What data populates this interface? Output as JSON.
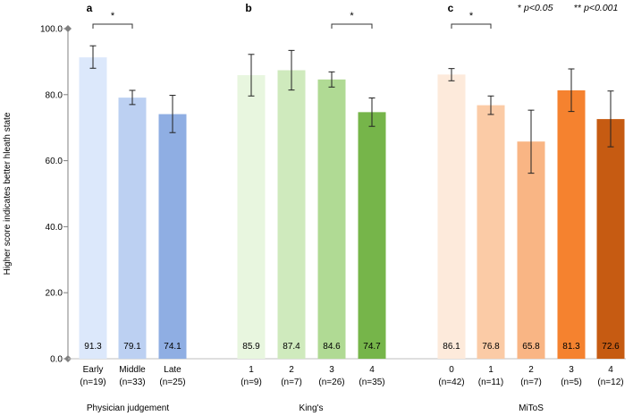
{
  "chart_data": {
    "type": "bar",
    "ylabel": "Higher score indicates better hleath state",
    "ylim": [
      0,
      100
    ],
    "y_ticks": [
      "0.0",
      "20.0",
      "40.0",
      "60.0",
      "80.0",
      "100.0"
    ],
    "y_tick_values": [
      0,
      20,
      40,
      60,
      80,
      100
    ],
    "significance_note": {
      "star1": "*",
      "label1": "p<0.05",
      "star2": "**",
      "label2": "p<0.001"
    },
    "panels": [
      {
        "letter": "a",
        "group": "Physician judgement",
        "categories": [
          "Early",
          "Middle",
          "Late"
        ],
        "n_labels": [
          "(n=19)",
          "(n=33)",
          "(n=25)"
        ],
        "values": [
          91.3,
          79.1,
          74.1
        ],
        "value_labels": [
          "91.3",
          "79.1",
          "74.1"
        ],
        "error_low": [
          88.0,
          77.0,
          68.5
        ],
        "error_high": [
          94.8,
          81.3,
          79.8
        ],
        "colors": [
          "#dce8fb",
          "#bcd0f2",
          "#8faee3"
        ],
        "significance": [
          {
            "from": 0,
            "to": 1,
            "label": "*"
          }
        ]
      },
      {
        "letter": "b",
        "group": "King's",
        "categories": [
          "1",
          "2",
          "3",
          "4"
        ],
        "n_labels": [
          "(n=9)",
          "(n=7)",
          "(n=26)",
          "(n=35)"
        ],
        "values": [
          85.9,
          87.4,
          84.6,
          74.7
        ],
        "value_labels": [
          "85.9",
          "87.4",
          "84.6",
          "74.7"
        ],
        "error_low": [
          79.6,
          81.4,
          82.3,
          70.4
        ],
        "error_high": [
          92.2,
          93.4,
          86.9,
          79.0
        ],
        "colors": [
          "#e8f6df",
          "#cfeabd",
          "#b0da94",
          "#76b54a"
        ],
        "significance": [
          {
            "from": 2,
            "to": 3,
            "label": "*"
          }
        ]
      },
      {
        "letter": "c",
        "group": "MiToS",
        "categories": [
          "0",
          "1",
          "2",
          "3",
          "4"
        ],
        "n_labels": [
          "(n=42)",
          "(n=11)",
          "(n=7)",
          "(n=5)",
          "(n=12)"
        ],
        "values": [
          86.1,
          76.8,
          65.8,
          81.3,
          72.6
        ],
        "value_labels": [
          "86.1",
          "76.8",
          "65.8",
          "81.3",
          "72.6"
        ],
        "error_low": [
          84.2,
          74.0,
          56.2,
          74.9,
          64.2
        ],
        "error_high": [
          87.9,
          79.6,
          75.3,
          87.8,
          81.1
        ],
        "colors": [
          "#fdeadb",
          "#fbcba6",
          "#f9b584",
          "#f5822f",
          "#c65b12"
        ],
        "significance": [
          {
            "from": 0,
            "to": 1,
            "label": "*"
          }
        ]
      }
    ]
  }
}
